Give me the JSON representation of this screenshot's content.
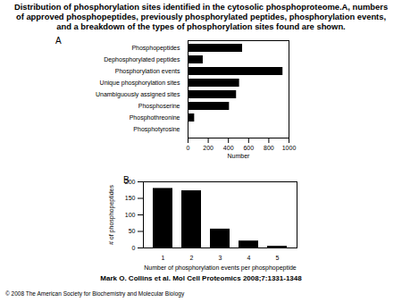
{
  "title": "Distribution of phosphorylation sites identified in the cytosolic phosphoproteome.A, numbers of approved phosphopeptides, previously phosphorylated peptides, phosphorylation events, and a breakdown of the types of phosphorylation sites found are shown.",
  "citation": "Mark O. Collins et al. Mol Cell Proteomics 2008;7:1331-1348",
  "copyright": "© 2008 The American Society for Biochemistry and Molecular Biology",
  "chart_data": [
    {
      "type": "bar",
      "orientation": "horizontal",
      "annotations": [
        "A"
      ],
      "categories": [
        "Phosphopeptides",
        "Dephosphorylated peptides",
        "Phosphorylation events",
        "Unique phosphorylation sites",
        "Unambiguously assigned sites",
        "Phosphoserine",
        "Phosphothreonine",
        "Phosphotyrosine"
      ],
      "values": [
        540,
        150,
        940,
        510,
        480,
        410,
        65,
        3
      ],
      "color": "#000000",
      "x_label": "Number",
      "xlim": [
        0,
        1000
      ],
      "xticks": [
        0,
        200,
        400,
        600,
        800,
        1000
      ],
      "grid": false
    },
    {
      "type": "bar",
      "annotations": [
        "B"
      ],
      "categories": [
        "1",
        "2",
        "3",
        "4",
        "5"
      ],
      "values": [
        180,
        173,
        57,
        21,
        5
      ],
      "color": "#000000",
      "x_label": "Number of phosphorylation events per phosphopeptide",
      "y_label": "# of phosphopeptides",
      "ylim": [
        0,
        200
      ],
      "yticks": [
        0,
        50,
        100,
        150,
        200
      ],
      "grid": false
    }
  ]
}
